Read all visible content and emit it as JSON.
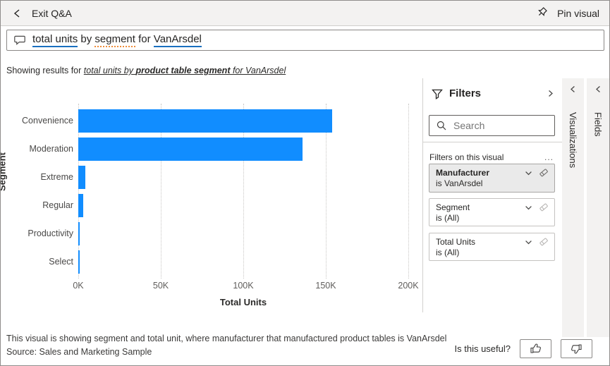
{
  "topbar": {
    "exit_label": "Exit Q&A",
    "pin_label": "Pin visual"
  },
  "question": {
    "segments": [
      {
        "text": "total units",
        "underline": "solid-blue"
      },
      {
        "text": " by ",
        "underline": "none"
      },
      {
        "text": "segment",
        "underline": "dotted-orange"
      },
      {
        "text": " for ",
        "underline": "none"
      },
      {
        "text": "VanArsdel",
        "underline": "solid-blue"
      }
    ]
  },
  "showing": {
    "prefix": "Showing results for ",
    "interpretation_pre": "total units by ",
    "interpretation_bold": "product table segment",
    "interpretation_post": " for VanArsdel"
  },
  "chart_data": {
    "type": "bar",
    "orientation": "horizontal",
    "title": "",
    "categories": [
      "Convenience",
      "Moderation",
      "Extreme",
      "Regular",
      "Productivity",
      "Select"
    ],
    "values": [
      154000,
      136000,
      4300,
      3000,
      800,
      700
    ],
    "xlabel": "Total Units",
    "ylabel": "Segment",
    "xlim": [
      0,
      200000
    ],
    "xticks": [
      "0K",
      "50K",
      "100K",
      "150K",
      "200K"
    ],
    "bar_color": "#118DFF",
    "grid": "dotted-vertical",
    "legend": "none"
  },
  "filters": {
    "title": "Filters",
    "search_placeholder": "Search",
    "section_label": "Filters on this visual",
    "more_label": "...",
    "cards": [
      {
        "name": "Manufacturer",
        "condition": "is VanArsdel",
        "highlighted": true
      },
      {
        "name": "Segment",
        "condition": "is (All)",
        "highlighted": false
      },
      {
        "name": "Total Units",
        "condition": "is (All)",
        "highlighted": false
      }
    ]
  },
  "side_panels": [
    {
      "label": "Visualizations"
    },
    {
      "label": "Fields"
    }
  ],
  "footer": {
    "description": "This visual is showing segment and total unit, where manufacturer that manufactured product tables is VanArsdel",
    "source": "Source: Sales and Marketing Sample",
    "feedback_label": "Is this useful?"
  },
  "colors": {
    "accent_bar": "#118DFF",
    "underline_blue": "#1a6fbf",
    "underline_orange": "#ef8c3a",
    "topbar_bg": "#f3f2f1",
    "panel_bg": "#f3f2f1"
  }
}
